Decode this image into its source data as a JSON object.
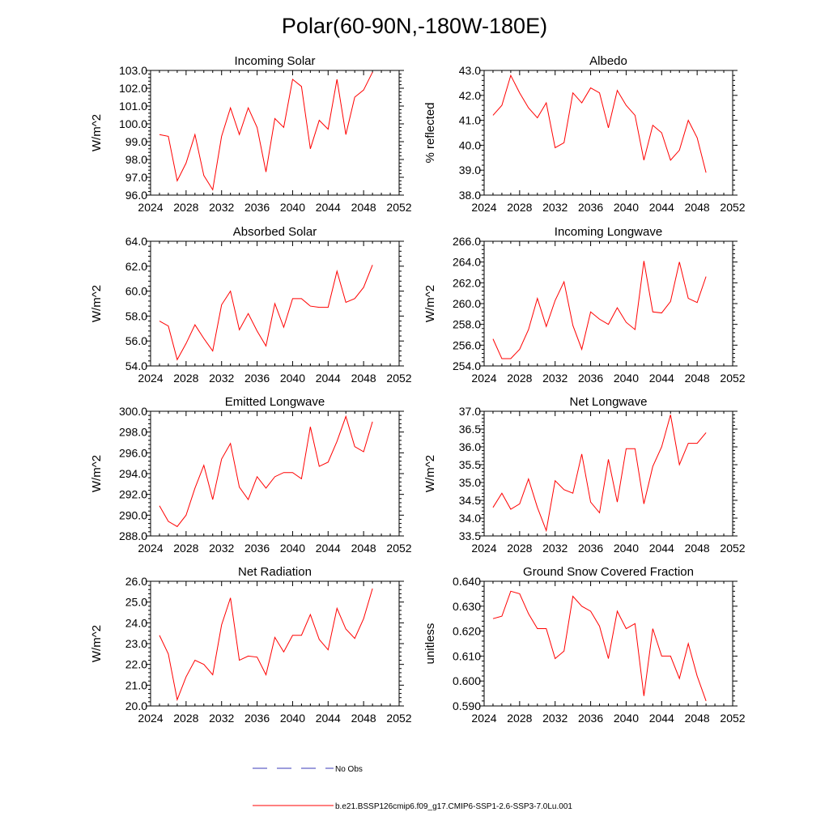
{
  "figure": {
    "title": "Polar(60-90N,-180W-180E)",
    "legend": [
      {
        "label": "No Obs",
        "style": "dashed",
        "color": "#3b3bb8"
      },
      {
        "label": "b.e21.BSSP126cmip6.f09_g17.CMIP6-SSP1-2.6-SSP3-7.0Lu.001",
        "style": "solid",
        "color": "#ff0000"
      }
    ]
  },
  "chart_data": [
    {
      "type": "line",
      "title": "Incoming Solar",
      "ylabel": "W/m^2",
      "xlim": [
        2024,
        2052
      ],
      "xticks": [
        "2024",
        "2028",
        "2032",
        "2036",
        "2040",
        "2044",
        "2048",
        "2052"
      ],
      "ylim": [
        96.0,
        103.0
      ],
      "yticks": [
        "96.0",
        "97.0",
        "98.0",
        "99.0",
        "100.0",
        "101.0",
        "102.0",
        "103.0"
      ],
      "x": [
        2025,
        2026,
        2027,
        2028,
        2029,
        2030,
        2031,
        2032,
        2033,
        2034,
        2035,
        2036,
        2037,
        2038,
        2039,
        2040,
        2041,
        2042,
        2043,
        2044,
        2045,
        2046,
        2047,
        2048,
        2049
      ],
      "series": [
        {
          "color": "#ff0000",
          "values": [
            99.4,
            99.3,
            96.8,
            97.8,
            99.4,
            97.1,
            96.3,
            99.3,
            100.9,
            99.4,
            100.9,
            99.8,
            97.3,
            100.3,
            99.8,
            102.5,
            102.1,
            98.6,
            100.2,
            99.7,
            102.5,
            99.4,
            101.5,
            101.9,
            102.9
          ]
        }
      ]
    },
    {
      "type": "line",
      "title": "Albedo",
      "ylabel": "% reflected",
      "xlim": [
        2024,
        2052
      ],
      "xticks": [
        "2024",
        "2028",
        "2032",
        "2036",
        "2040",
        "2044",
        "2048",
        "2052"
      ],
      "ylim": [
        38.0,
        43.0
      ],
      "yticks": [
        "38.0",
        "39.0",
        "40.0",
        "41.0",
        "42.0",
        "43.0"
      ],
      "x": [
        2025,
        2026,
        2027,
        2028,
        2029,
        2030,
        2031,
        2032,
        2033,
        2034,
        2035,
        2036,
        2037,
        2038,
        2039,
        2040,
        2041,
        2042,
        2043,
        2044,
        2045,
        2046,
        2047,
        2048,
        2049
      ],
      "series": [
        {
          "color": "#ff0000",
          "values": [
            41.2,
            41.6,
            42.8,
            42.1,
            41.5,
            41.1,
            41.7,
            39.9,
            40.1,
            42.1,
            41.7,
            42.3,
            42.1,
            40.7,
            42.2,
            41.6,
            41.2,
            39.4,
            40.8,
            40.5,
            39.4,
            39.8,
            41.0,
            40.3,
            38.9
          ]
        }
      ]
    },
    {
      "type": "line",
      "title": "Absorbed Solar",
      "ylabel": "W/m^2",
      "xlim": [
        2024,
        2052
      ],
      "xticks": [
        "2024",
        "2028",
        "2032",
        "2036",
        "2040",
        "2044",
        "2048",
        "2052"
      ],
      "ylim": [
        54.0,
        64.0
      ],
      "yticks": [
        "54.0",
        "56.0",
        "58.0",
        "60.0",
        "62.0",
        "64.0"
      ],
      "x": [
        2025,
        2026,
        2027,
        2028,
        2029,
        2030,
        2031,
        2032,
        2033,
        2034,
        2035,
        2036,
        2037,
        2038,
        2039,
        2040,
        2041,
        2042,
        2043,
        2044,
        2045,
        2046,
        2047,
        2048,
        2049
      ],
      "series": [
        {
          "color": "#ff0000",
          "values": [
            57.6,
            57.2,
            54.5,
            55.8,
            57.3,
            56.2,
            55.2,
            58.9,
            60.0,
            56.9,
            58.2,
            56.8,
            55.6,
            59.0,
            57.1,
            59.4,
            59.4,
            58.8,
            58.7,
            58.7,
            61.6,
            59.1,
            59.4,
            60.3,
            62.1
          ]
        }
      ]
    },
    {
      "type": "line",
      "title": "Incoming Longwave",
      "ylabel": "W/m^2",
      "xlim": [
        2024,
        2052
      ],
      "xticks": [
        "2024",
        "2028",
        "2032",
        "2036",
        "2040",
        "2044",
        "2048",
        "2052"
      ],
      "ylim": [
        254.0,
        266.0
      ],
      "yticks": [
        "254.0",
        "256.0",
        "258.0",
        "260.0",
        "262.0",
        "264.0",
        "266.0"
      ],
      "x": [
        2025,
        2026,
        2027,
        2028,
        2029,
        2030,
        2031,
        2032,
        2033,
        2034,
        2035,
        2036,
        2037,
        2038,
        2039,
        2040,
        2041,
        2042,
        2043,
        2044,
        2045,
        2046,
        2047,
        2048,
        2049
      ],
      "series": [
        {
          "color": "#ff0000",
          "values": [
            256.6,
            254.7,
            254.7,
            255.6,
            257.5,
            260.5,
            257.8,
            260.3,
            262.1,
            257.9,
            255.6,
            259.2,
            258.5,
            258.0,
            259.6,
            258.2,
            257.5,
            264.1,
            259.2,
            259.1,
            260.2,
            264.0,
            260.5,
            260.1,
            262.6
          ]
        }
      ]
    },
    {
      "type": "line",
      "title": "Emitted Longwave",
      "ylabel": "W/m^2",
      "xlim": [
        2024,
        2052
      ],
      "xticks": [
        "2024",
        "2028",
        "2032",
        "2036",
        "2040",
        "2044",
        "2048",
        "2052"
      ],
      "ylim": [
        288.0,
        300.0
      ],
      "yticks": [
        "288.0",
        "290.0",
        "292.0",
        "294.0",
        "296.0",
        "298.0",
        "300.0"
      ],
      "x": [
        2025,
        2026,
        2027,
        2028,
        2029,
        2030,
        2031,
        2032,
        2033,
        2034,
        2035,
        2036,
        2037,
        2038,
        2039,
        2040,
        2041,
        2042,
        2043,
        2044,
        2045,
        2046,
        2047,
        2048,
        2049
      ],
      "series": [
        {
          "color": "#ff0000",
          "values": [
            290.9,
            289.4,
            288.9,
            290.0,
            292.6,
            294.8,
            291.5,
            295.4,
            296.9,
            292.7,
            291.5,
            293.7,
            292.6,
            293.7,
            294.1,
            294.1,
            293.5,
            298.5,
            294.7,
            295.1,
            297.1,
            299.5,
            296.6,
            296.1,
            299.0
          ]
        }
      ]
    },
    {
      "type": "line",
      "title": "Net Longwave",
      "ylabel": "W/m^2",
      "xlim": [
        2024,
        2052
      ],
      "xticks": [
        "2024",
        "2028",
        "2032",
        "2036",
        "2040",
        "2044",
        "2048",
        "2052"
      ],
      "ylim": [
        33.5,
        37.0
      ],
      "yticks": [
        "33.5",
        "34.0",
        "34.5",
        "35.0",
        "35.5",
        "36.0",
        "36.5",
        "37.0"
      ],
      "x": [
        2025,
        2026,
        2027,
        2028,
        2029,
        2030,
        2031,
        2032,
        2033,
        2034,
        2035,
        2036,
        2037,
        2038,
        2039,
        2040,
        2041,
        2042,
        2043,
        2044,
        2045,
        2046,
        2047,
        2048,
        2049
      ],
      "series": [
        {
          "color": "#ff0000",
          "values": [
            34.3,
            34.7,
            34.25,
            34.4,
            35.1,
            34.3,
            33.65,
            35.05,
            34.8,
            34.7,
            35.8,
            34.45,
            34.15,
            35.65,
            34.45,
            35.95,
            35.95,
            34.4,
            35.45,
            36.0,
            36.9,
            35.5,
            36.1,
            36.1,
            36.4
          ]
        }
      ]
    },
    {
      "type": "line",
      "title": "Net Radiation",
      "ylabel": "W/m^2",
      "xlim": [
        2024,
        2052
      ],
      "xticks": [
        "2024",
        "2028",
        "2032",
        "2036",
        "2040",
        "2044",
        "2048",
        "2052"
      ],
      "ylim": [
        20.0,
        26.0
      ],
      "yticks": [
        "20.0",
        "21.0",
        "22.0",
        "23.0",
        "24.0",
        "25.0",
        "26.0"
      ],
      "x": [
        2025,
        2026,
        2027,
        2028,
        2029,
        2030,
        2031,
        2032,
        2033,
        2034,
        2035,
        2036,
        2037,
        2038,
        2039,
        2040,
        2041,
        2042,
        2043,
        2044,
        2045,
        2046,
        2047,
        2048,
        2049
      ],
      "series": [
        {
          "color": "#ff0000",
          "values": [
            23.4,
            22.5,
            20.3,
            21.4,
            22.2,
            22.0,
            21.5,
            23.9,
            25.2,
            22.2,
            22.4,
            22.35,
            21.5,
            23.3,
            22.6,
            23.4,
            23.4,
            24.4,
            23.2,
            22.7,
            24.7,
            23.7,
            23.25,
            24.2,
            25.65
          ]
        }
      ]
    },
    {
      "type": "line",
      "title": "Ground Snow Covered Fraction",
      "ylabel": "unitless",
      "xlim": [
        2024,
        2052
      ],
      "xticks": [
        "2024",
        "2028",
        "2032",
        "2036",
        "2040",
        "2044",
        "2048",
        "2052"
      ],
      "ylim": [
        0.59,
        0.64
      ],
      "yticks": [
        "0.590",
        "0.600",
        "0.610",
        "0.620",
        "0.630",
        "0.640"
      ],
      "x": [
        2025,
        2026,
        2027,
        2028,
        2029,
        2030,
        2031,
        2032,
        2033,
        2034,
        2035,
        2036,
        2037,
        2038,
        2039,
        2040,
        2041,
        2042,
        2043,
        2044,
        2045,
        2046,
        2047,
        2048,
        2049
      ],
      "series": [
        {
          "color": "#ff0000",
          "values": [
            0.625,
            0.626,
            0.636,
            0.635,
            0.627,
            0.621,
            0.621,
            0.609,
            0.612,
            0.634,
            0.63,
            0.628,
            0.622,
            0.609,
            0.628,
            0.621,
            0.623,
            0.594,
            0.621,
            0.61,
            0.61,
            0.601,
            0.615,
            0.602,
            0.592
          ]
        }
      ]
    }
  ]
}
